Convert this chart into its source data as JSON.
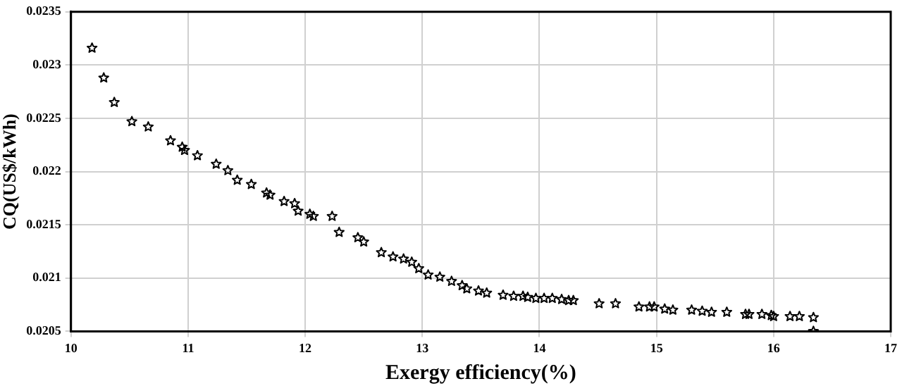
{
  "chart_data": {
    "type": "scatter",
    "xlabel": "Exergy efficiency(%)",
    "ylabel": "CQ(US$/kWh)",
    "marker": "star",
    "grid": true,
    "xlim": [
      10,
      17
    ],
    "xticks": [
      10,
      11,
      12,
      13,
      14,
      15,
      16,
      17
    ],
    "ylim": [
      0.0205,
      0.0235
    ],
    "yticks": [
      0.0205,
      0.021,
      0.0215,
      0.022,
      0.0225,
      0.023,
      0.0235
    ],
    "series": [
      {
        "color": "#000000",
        "x": [
          10.18,
          10.28,
          10.37,
          10.52,
          10.66,
          10.85,
          10.95,
          10.97,
          11.08,
          11.24,
          11.34,
          11.42,
          11.54,
          11.67,
          11.7,
          11.82,
          11.91,
          11.94,
          12.04,
          12.07,
          12.23,
          12.29,
          12.45,
          12.5,
          12.65,
          12.75,
          12.84,
          12.91,
          12.97,
          13.05,
          13.15,
          13.25,
          13.34,
          13.38,
          13.48,
          13.55,
          13.69,
          13.78,
          13.86,
          13.9,
          13.97,
          14.04,
          14.11,
          14.19,
          14.25,
          14.29,
          14.51,
          14.65,
          14.85,
          14.94,
          14.98,
          15.07,
          15.14,
          15.3,
          15.39,
          15.47,
          15.6,
          15.76,
          15.79,
          15.9,
          15.98,
          16.0,
          16.14,
          16.22,
          16.34,
          16.34
        ],
        "values": [
          0.02316,
          0.02288,
          0.02265,
          0.02247,
          0.02242,
          0.02229,
          0.02223,
          0.0222,
          0.02215,
          0.02207,
          0.02201,
          0.02192,
          0.02188,
          0.0218,
          0.02178,
          0.02172,
          0.0217,
          0.02163,
          0.0216,
          0.02158,
          0.02158,
          0.02143,
          0.02138,
          0.02134,
          0.02124,
          0.0212,
          0.02118,
          0.02115,
          0.02109,
          0.02103,
          0.02101,
          0.02097,
          0.02093,
          0.0209,
          0.02088,
          0.02086,
          0.02084,
          0.02083,
          0.02083,
          0.02082,
          0.02081,
          0.02081,
          0.02081,
          0.0208,
          0.02079,
          0.02079,
          0.02076,
          0.02076,
          0.02073,
          0.02073,
          0.02073,
          0.02071,
          0.0207,
          0.0207,
          0.02069,
          0.02068,
          0.02068,
          0.02066,
          0.02066,
          0.02066,
          0.02065,
          0.02064,
          0.02064,
          0.02064,
          0.02063,
          0.0205
        ]
      }
    ]
  }
}
